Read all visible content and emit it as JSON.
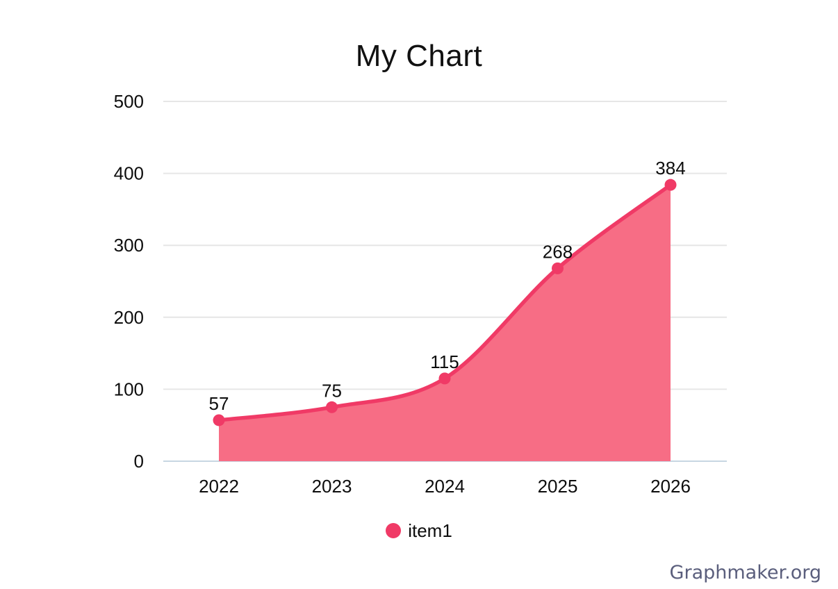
{
  "chart_data": {
    "type": "area",
    "title": "My Chart",
    "categories": [
      "2022",
      "2023",
      "2024",
      "2025",
      "2026"
    ],
    "series": [
      {
        "name": "item1",
        "values": [
          57,
          75,
          115,
          268,
          384
        ]
      }
    ],
    "ylim": [
      0,
      500
    ],
    "yticks": [
      0,
      100,
      200,
      300,
      400,
      500
    ],
    "grid": "horizontal",
    "legend_position": "bottom",
    "show_data_labels": true,
    "colors": {
      "line": "#F03A66",
      "fill": "#F76D85",
      "marker": "#F03A66",
      "gridline": "#E6E6E6",
      "zero_line": "#C7D6E2",
      "text": "#0D0D0D"
    }
  },
  "watermark": {
    "text": "Graphmaker.org",
    "color": "#5A5E7C"
  }
}
